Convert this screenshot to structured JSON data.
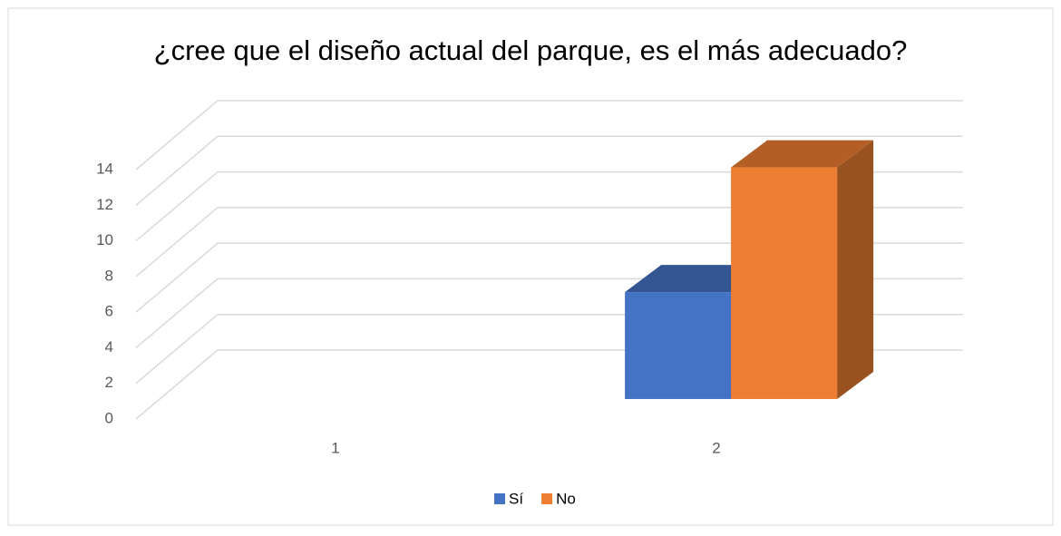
{
  "chart_data": {
    "type": "bar3d",
    "title": "¿cree que el diseño actual del parque, es el más adecuado?",
    "categories": [
      "1",
      "2"
    ],
    "series": [
      {
        "name": "Sí",
        "color": "#4472c4",
        "values": [
          null,
          6
        ]
      },
      {
        "name": "No",
        "color": "#ed7d31",
        "values": [
          null,
          13
        ]
      }
    ],
    "ylim": [
      0,
      14
    ],
    "yticks": [
      0,
      2,
      4,
      6,
      8,
      10,
      12,
      14
    ],
    "grid": true,
    "legend": "bottom"
  }
}
